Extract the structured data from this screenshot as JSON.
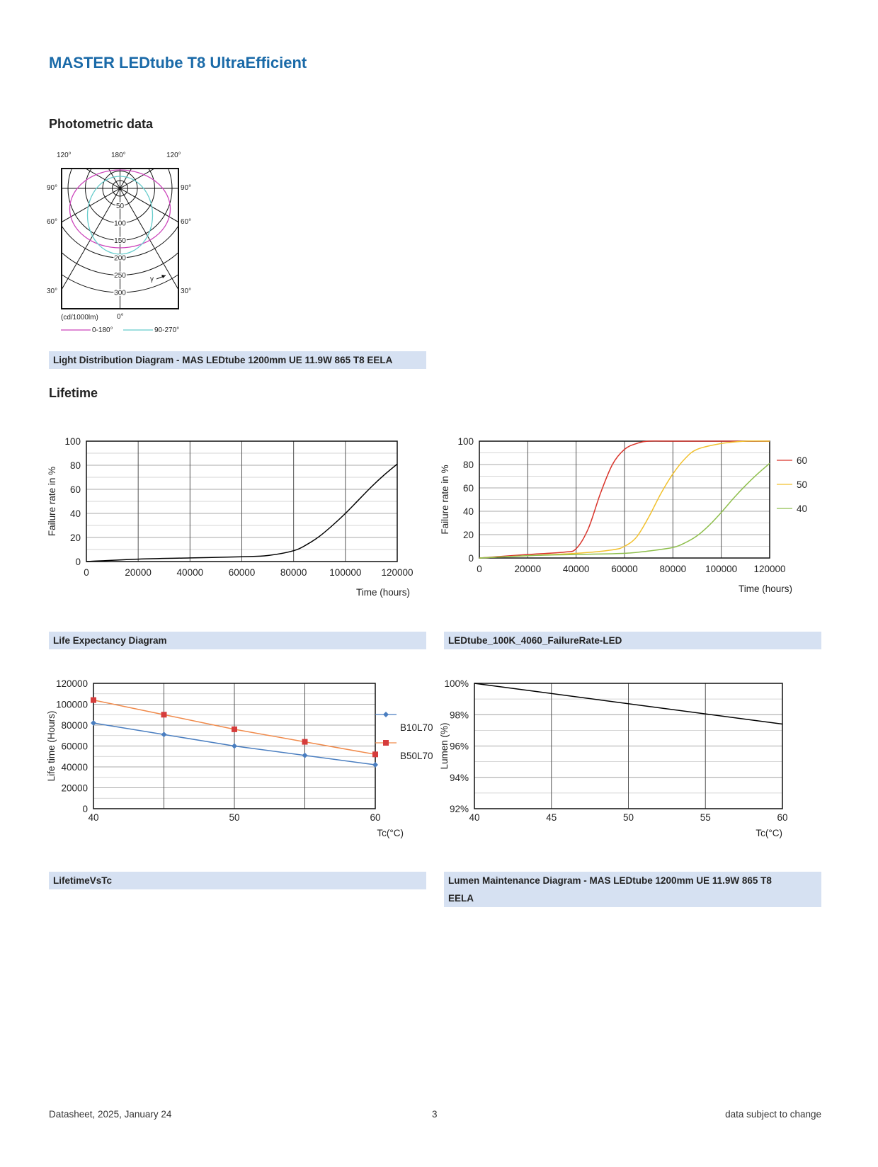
{
  "document": {
    "title": "MASTER LEDtube T8 UltraEfficient"
  },
  "sections": {
    "photometric": "Photometric data",
    "lifetime": "Lifetime"
  },
  "captions": {
    "light_distribution": "Light Distribution Diagram - MAS LEDtube 1200mm UE 11.9W 865 T8 EELA",
    "life_expectancy": "Life Expectancy Diagram",
    "failure_rate": "LEDtube_100K_4060_FailureRate-LED",
    "lifetime_vs_tc": "LifetimeVsTc",
    "lumen_maintenance_1": "Lumen Maintenance Diagram - MAS LEDtube 1200mm UE 11.9W 865 T8",
    "lumen_maintenance_2": "EELA"
  },
  "footer": {
    "left": "Datasheet, 2025, January 24",
    "page": "3",
    "right": "data subject to change"
  },
  "polar": {
    "angle_labels": {
      "top_left": "120°",
      "top_center": "180°",
      "top_right": "120°",
      "left_90": "90°",
      "right_90": "90°",
      "left_60": "60°",
      "right_60": "60°",
      "left_30": "30°",
      "right_30": "30°",
      "bottom_center": "0°"
    },
    "ring_labels": [
      "50",
      "100",
      "150",
      "200",
      "250",
      "300"
    ],
    "unit": "(cd/1000lm)",
    "gamma_label": "γ",
    "legend": [
      "0-180°",
      "90-270°"
    ],
    "colors": {
      "c0_180": "#cc44bb",
      "c90_270": "#66cccc"
    }
  },
  "chart_data": [
    {
      "type": "line",
      "id": "life_expectancy",
      "xlabel": "Time (hours)",
      "ylabel": "Failure rate in %",
      "xlim": [
        0,
        120000
      ],
      "ylim": [
        0,
        100
      ],
      "xticks": [
        "0",
        "20000",
        "40000",
        "60000",
        "80000",
        "100000",
        "120000"
      ],
      "yticks": [
        "0",
        "20",
        "40",
        "60",
        "80",
        "100"
      ],
      "grid": true,
      "series": [
        {
          "color": "#000000",
          "x": [
            0,
            20000,
            40000,
            60000,
            70000,
            80000,
            85000,
            90000,
            95000,
            100000,
            105000,
            110000,
            115000,
            120000
          ],
          "y": [
            0,
            2,
            3,
            4,
            5,
            9,
            14,
            21,
            30,
            40,
            51,
            62,
            72,
            81
          ]
        }
      ]
    },
    {
      "type": "line",
      "id": "failure_rate",
      "xlabel": "Time (hours)",
      "ylabel": "Failure rate in %",
      "xlim": [
        0,
        120000
      ],
      "ylim": [
        0,
        100
      ],
      "xticks": [
        "0",
        "20000",
        "40000",
        "60000",
        "80000",
        "100000",
        "120000"
      ],
      "yticks": [
        "0",
        "20",
        "40",
        "60",
        "80",
        "100"
      ],
      "grid": true,
      "legend_position": "right",
      "series": [
        {
          "name": "60",
          "color": "#d9342b",
          "x": [
            0,
            20000,
            35000,
            40000,
            45000,
            50000,
            55000,
            60000,
            65000,
            70000,
            80000,
            120000
          ],
          "y": [
            0,
            3,
            5,
            8,
            25,
            55,
            80,
            93,
            98,
            100,
            100,
            100
          ]
        },
        {
          "name": "50",
          "color": "#f2c12e",
          "x": [
            0,
            20000,
            40000,
            55000,
            60000,
            65000,
            70000,
            75000,
            80000,
            85000,
            90000,
            100000,
            110000,
            120000
          ],
          "y": [
            0,
            2,
            4,
            7,
            10,
            18,
            35,
            55,
            72,
            85,
            93,
            98,
            100,
            100
          ]
        },
        {
          "name": "40",
          "color": "#8fbf4d",
          "x": [
            0,
            20000,
            40000,
            60000,
            70000,
            80000,
            85000,
            90000,
            95000,
            100000,
            105000,
            110000,
            115000,
            120000
          ],
          "y": [
            0,
            2,
            3,
            4,
            6,
            9,
            13,
            19,
            28,
            39,
            51,
            62,
            72,
            81
          ]
        }
      ]
    },
    {
      "type": "line",
      "id": "lifetime_vs_tc",
      "xlabel": "Tc(°C)",
      "ylabel": "Life time (Hours)",
      "xlim": [
        40,
        60
      ],
      "ylim": [
        0,
        120000
      ],
      "xticks": [
        "40",
        "50",
        "60"
      ],
      "yticks": [
        "0",
        "20000",
        "40000",
        "60000",
        "80000",
        "100000",
        "120000"
      ],
      "grid": true,
      "legend_position": "right",
      "series": [
        {
          "name": "B10L70",
          "color": "#4a7ec0",
          "marker": "diamond",
          "x": [
            40,
            45,
            50,
            55,
            60
          ],
          "y": [
            82000,
            71000,
            60000,
            51000,
            42000
          ]
        },
        {
          "name": "B50L70",
          "color": "#f08a4b",
          "marker_color": "#d63c3c",
          "marker": "square",
          "x": [
            40,
            45,
            50,
            55,
            60
          ],
          "y": [
            104000,
            90000,
            76000,
            64000,
            52000
          ]
        }
      ]
    },
    {
      "type": "line",
      "id": "lumen_maintenance",
      "xlabel": "Tc(°C)",
      "ylabel": "Lumen (%)",
      "xlim": [
        40,
        60
      ],
      "ylim": [
        92,
        100
      ],
      "xticks": [
        "40",
        "45",
        "50",
        "55",
        "60"
      ],
      "yticks": [
        "92%",
        "94%",
        "96%",
        "98%",
        "100%"
      ],
      "grid": true,
      "series": [
        {
          "color": "#000000",
          "x": [
            40,
            60
          ],
          "y": [
            100,
            97.4
          ]
        }
      ]
    }
  ]
}
